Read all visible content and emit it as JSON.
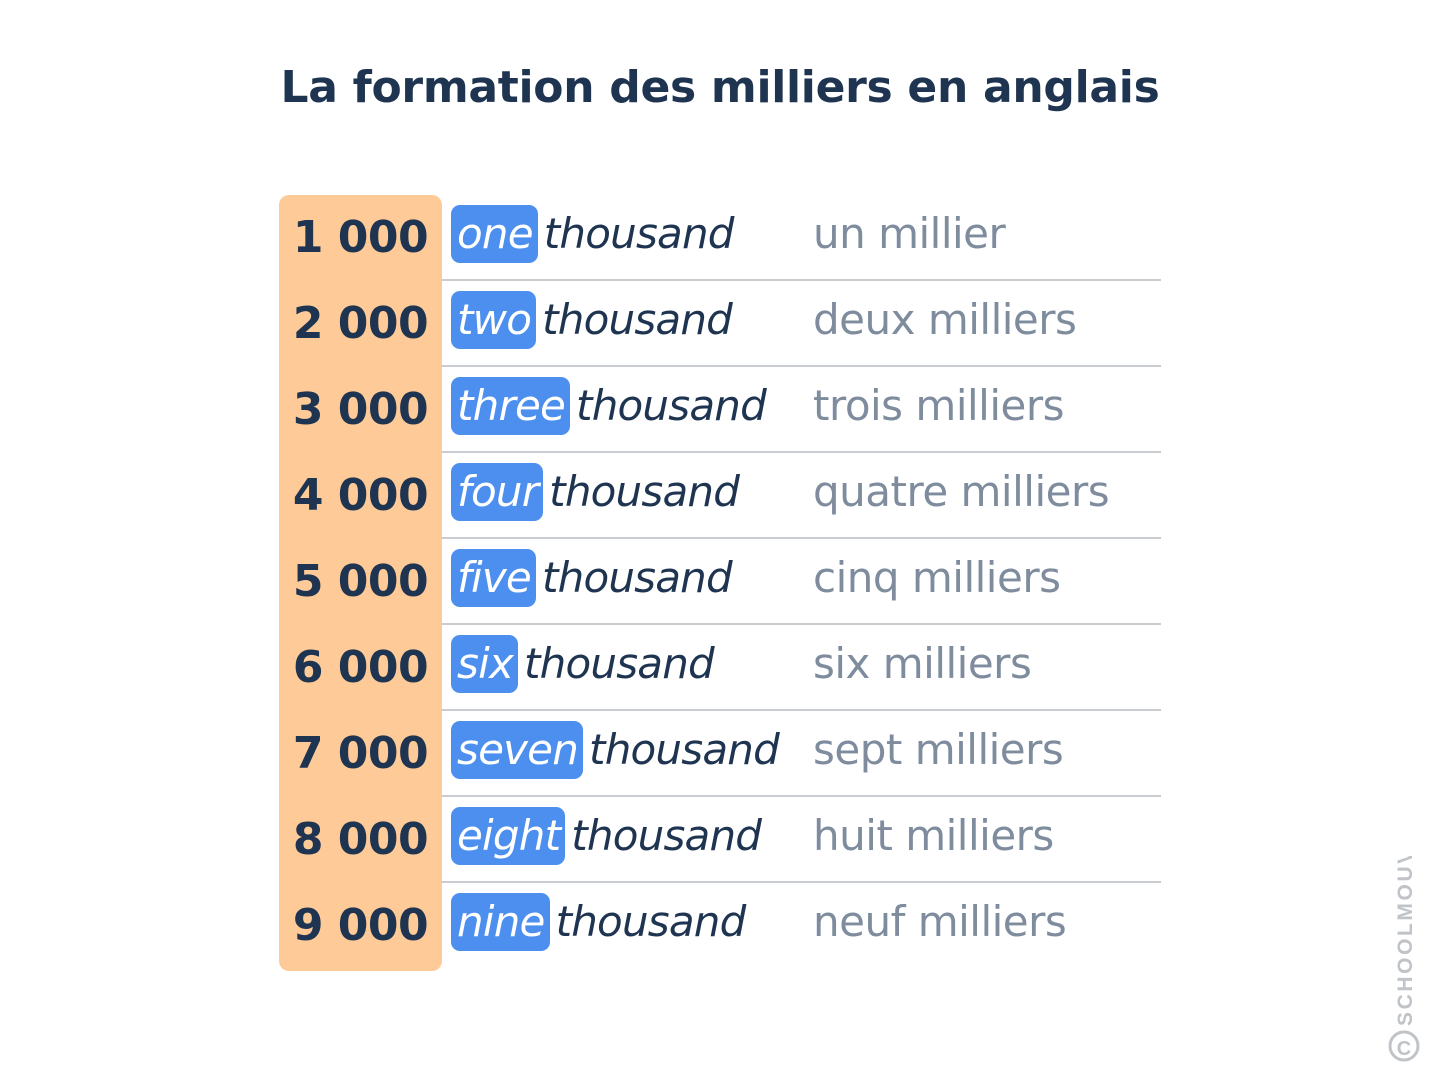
{
  "title": "La formation des milliers en anglais",
  "colors": {
    "title": "#1e3450",
    "number_column_bg": "#fecb98",
    "tag_bg": "#4d8fee",
    "tag_text": "#ffffff",
    "english_text": "#1e3450",
    "french_text": "#7e8c9e",
    "divider": "#c9cdd2"
  },
  "rows": [
    {
      "number": "1 000",
      "word": "one",
      "suffix": "thousand",
      "french": "un millier"
    },
    {
      "number": "2 000",
      "word": "two",
      "suffix": "thousand",
      "french": "deux milliers"
    },
    {
      "number": "3 000",
      "word": "three",
      "suffix": "thousand",
      "french": "trois milliers"
    },
    {
      "number": "4 000",
      "word": "four",
      "suffix": "thousand",
      "french": "quatre milliers"
    },
    {
      "number": "5 000",
      "word": "five",
      "suffix": "thousand",
      "french": "cinq milliers"
    },
    {
      "number": "6 000",
      "word": "six",
      "suffix": "thousand",
      "french": "six milliers"
    },
    {
      "number": "7 000",
      "word": "seven",
      "suffix": "thousand",
      "french": "sept milliers"
    },
    {
      "number": "8 000",
      "word": "eight",
      "suffix": "thousand",
      "french": "huit milliers"
    },
    {
      "number": "9 000",
      "word": "nine",
      "suffix": "thousand",
      "french": "neuf milliers"
    }
  ],
  "watermark": "SCHOOLMOUV"
}
